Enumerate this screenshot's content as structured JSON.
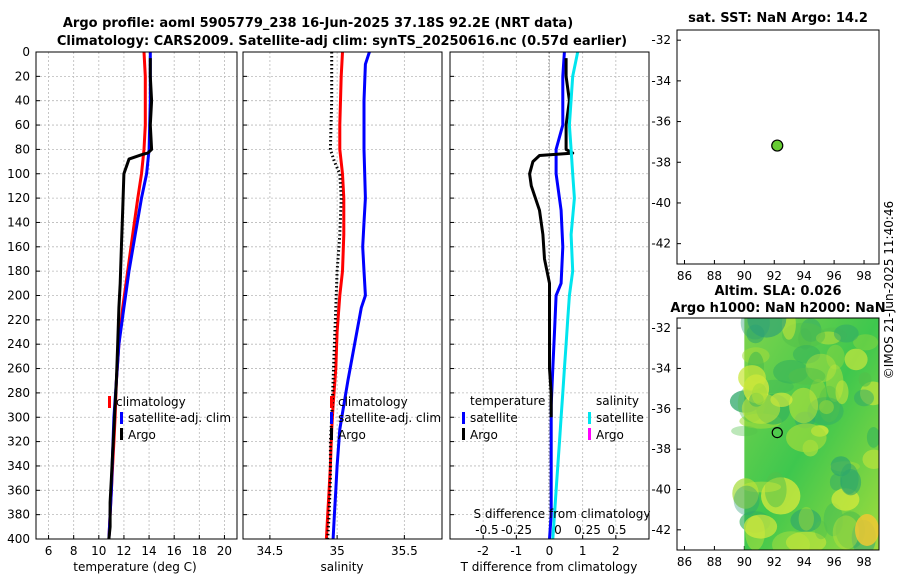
{
  "title_line1": "Argo profile: aoml 5905779_238 16-Jun-2025 37.18S 92.2E (NRT data)",
  "title_line2": "Climatology: CARS2009. Satellite-adj clim: synTS_20250616.nc (0.57d earlier)",
  "sst_title": "sat. SST: NaN Argo: 14.2",
  "sla_title_1": "Altim. SLA: 0.026",
  "sla_title_2": "Argo h1000: NaN h2000: NaN",
  "side_stamp": "©IMOS 21-Jun-2025 11:40:46",
  "colors": {
    "climatology": "#ff0000",
    "satellite": "#0000ff",
    "argo": "#000000",
    "sat_salinity": "#00e5ee",
    "sal_argo": "#ff00ff",
    "float_marker": "#66cc33"
  },
  "chart_data": [
    {
      "type": "line",
      "xlabel": "temperature (deg C)",
      "ylabel": "",
      "xlim": [
        5,
        21
      ],
      "ylim": [
        400,
        0
      ],
      "xticks": [
        6,
        8,
        10,
        12,
        14,
        16,
        18,
        20
      ],
      "yticks": [
        0,
        20,
        40,
        60,
        80,
        100,
        120,
        140,
        160,
        180,
        200,
        220,
        240,
        260,
        280,
        300,
        320,
        340,
        360,
        380,
        400
      ],
      "grid": true,
      "legend_position": "center-right",
      "legend": [
        "climatology",
        "satellite-adj. clim",
        "Argo"
      ],
      "series": [
        {
          "name": "climatology",
          "color": "#ff0000",
          "style": "solid",
          "x": [
            13.6,
            13.7,
            13.7,
            13.6,
            13.4,
            13.1,
            12.7,
            12.3,
            11.9,
            11.6,
            11.4,
            11.3,
            11.2,
            11.1,
            11.0,
            10.9,
            10.8
          ],
          "y": [
            0,
            20,
            60,
            80,
            100,
            120,
            150,
            180,
            210,
            240,
            270,
            300,
            320,
            340,
            360,
            380,
            400
          ]
        },
        {
          "name": "satellite-adj. clim",
          "color": "#0000ff",
          "style": "solid",
          "x": [
            14.1,
            14.1,
            14.0,
            13.8,
            13.4,
            12.9,
            12.4,
            12.0,
            11.6,
            11.4,
            11.2,
            11.1,
            11.0,
            10.9,
            10.8
          ],
          "y": [
            0,
            40,
            80,
            100,
            120,
            150,
            180,
            210,
            240,
            270,
            300,
            330,
            360,
            380,
            400
          ]
        },
        {
          "name": "Argo",
          "color": "#000000",
          "style": "solid",
          "x": [
            14.1,
            14.1,
            14.2,
            14.1,
            14.2,
            13.9,
            13.5,
            12.4,
            12.0,
            11.9,
            11.8,
            11.7,
            11.6,
            11.5,
            11.4,
            11.3,
            11.2,
            11.1,
            11.0,
            10.9,
            10.9,
            10.8
          ],
          "y": [
            5,
            20,
            40,
            60,
            80,
            83,
            84,
            88,
            100,
            130,
            160,
            190,
            210,
            240,
            270,
            290,
            310,
            330,
            350,
            370,
            390,
            400
          ]
        }
      ]
    },
    {
      "type": "line",
      "xlabel": "salinity",
      "xlim": [
        34.3,
        35.78
      ],
      "ylim": [
        400,
        0
      ],
      "xticks": [
        34.5,
        35,
        35.5
      ],
      "grid": true,
      "legend_position": "center-right",
      "legend": [
        "climatology",
        "satellite-adj. clim",
        "Argo"
      ],
      "series": [
        {
          "name": "climatology",
          "color": "#ff0000",
          "style": "solid",
          "x": [
            35.04,
            35.03,
            35.02,
            35.02,
            35.04,
            35.05,
            35.05,
            35.04,
            35.02,
            35.0,
            34.99,
            34.97,
            34.96,
            34.95,
            34.94,
            34.93,
            34.92
          ],
          "y": [
            0,
            20,
            60,
            80,
            100,
            120,
            150,
            180,
            200,
            230,
            260,
            290,
            310,
            340,
            360,
            380,
            400
          ]
        },
        {
          "name": "satellite-adj. clim",
          "color": "#0000ff",
          "style": "solid",
          "x": [
            35.24,
            35.21,
            35.2,
            35.2,
            35.21,
            35.2,
            35.19,
            35.2,
            35.21,
            35.18,
            35.13,
            35.08,
            35.05,
            35.02,
            35.0,
            34.99,
            34.98,
            34.97
          ],
          "y": [
            0,
            10,
            40,
            80,
            120,
            140,
            160,
            180,
            200,
            210,
            240,
            270,
            290,
            310,
            340,
            360,
            380,
            400
          ]
        },
        {
          "name": "Argo",
          "color": "#000000",
          "style": "dotted",
          "x": [
            34.96,
            34.96,
            34.95,
            34.98,
            35.02,
            35.03,
            35.02,
            35.0,
            34.99,
            34.98,
            34.97,
            34.96,
            34.95,
            34.95,
            34.94,
            34.93
          ],
          "y": [
            0,
            40,
            80,
            90,
            100,
            120,
            150,
            180,
            210,
            240,
            270,
            300,
            320,
            350,
            380,
            400
          ]
        }
      ]
    },
    {
      "type": "line",
      "xlabel": "T difference from climatology",
      "xlabel_top": "S difference from climatology",
      "xlim": [
        -3,
        3
      ],
      "ylim": [
        400,
        0
      ],
      "xticks": [
        -2,
        -1,
        0,
        1,
        2
      ],
      "xticks_top": [
        "-0.5",
        "-0.25",
        "0",
        "0.25",
        "0.5"
      ],
      "grid": true,
      "legend_left": {
        "heading": "temperature",
        "items": [
          "satellite",
          "Argo"
        ]
      },
      "legend_right": {
        "heading": "salinity",
        "items": [
          "satellite",
          "Argo"
        ]
      },
      "series": [
        {
          "name": "T satellite",
          "color": "#0000ff",
          "style": "solid",
          "x": [
            0.45,
            0.4,
            0.4,
            0.2,
            0.2,
            0.35,
            0.4,
            0.35,
            0.2,
            0.15,
            0.1,
            0.05,
            0.05,
            0.05,
            0.05,
            0.0
          ],
          "y": [
            0,
            20,
            60,
            80,
            100,
            130,
            160,
            190,
            200,
            230,
            260,
            290,
            320,
            350,
            380,
            400
          ]
        },
        {
          "name": "T Argo",
          "color": "#000000",
          "style": "solid",
          "x": [
            0.5,
            0.5,
            0.6,
            0.5,
            0.5,
            0.7,
            -0.3,
            -0.5,
            -0.6,
            -0.55,
            -0.3,
            -0.2,
            -0.15,
            0.0,
            0.0,
            0.0,
            0.0,
            0.05,
            0.05
          ],
          "y": [
            5,
            20,
            40,
            60,
            80,
            83,
            85,
            90,
            100,
            110,
            130,
            150,
            170,
            190,
            210,
            240,
            260,
            280,
            300
          ]
        },
        {
          "name": "S satellite",
          "color": "#00e5ee",
          "style": "solid",
          "x": [
            0.85,
            0.7,
            0.6,
            0.65,
            0.7,
            0.75,
            0.65,
            0.7,
            0.6,
            0.55,
            0.5,
            0.45,
            0.4,
            0.35,
            0.3,
            0.25,
            0.2,
            0.15,
            0.1
          ],
          "y": [
            0,
            20,
            60,
            80,
            100,
            120,
            150,
            180,
            200,
            220,
            240,
            260,
            280,
            300,
            320,
            340,
            360,
            380,
            400
          ]
        }
      ]
    },
    {
      "type": "scatter",
      "title": "sat. SST: NaN Argo: 14.2",
      "xlim": [
        85.5,
        99
      ],
      "ylim": [
        -43,
        -31.5
      ],
      "xticks": [
        86,
        88,
        90,
        92,
        94,
        96,
        98
      ],
      "yticks": [
        -32,
        -34,
        -36,
        -38,
        -40,
        -42
      ],
      "points": [
        {
          "x": 92.2,
          "y": -37.18
        }
      ]
    },
    {
      "type": "heatmap",
      "title": "Altim. SLA: 0.026 / Argo h1000: NaN h2000: NaN",
      "xlim": [
        85.5,
        99
      ],
      "ylim": [
        -43,
        -31.5
      ],
      "data_x_range": [
        90,
        99
      ],
      "xticks": [
        86,
        88,
        90,
        92,
        94,
        96,
        98
      ],
      "yticks": [
        -32,
        -34,
        -36,
        -38,
        -40,
        -42
      ],
      "points": [
        {
          "x": 92.2,
          "y": -37.18
        }
      ]
    }
  ]
}
